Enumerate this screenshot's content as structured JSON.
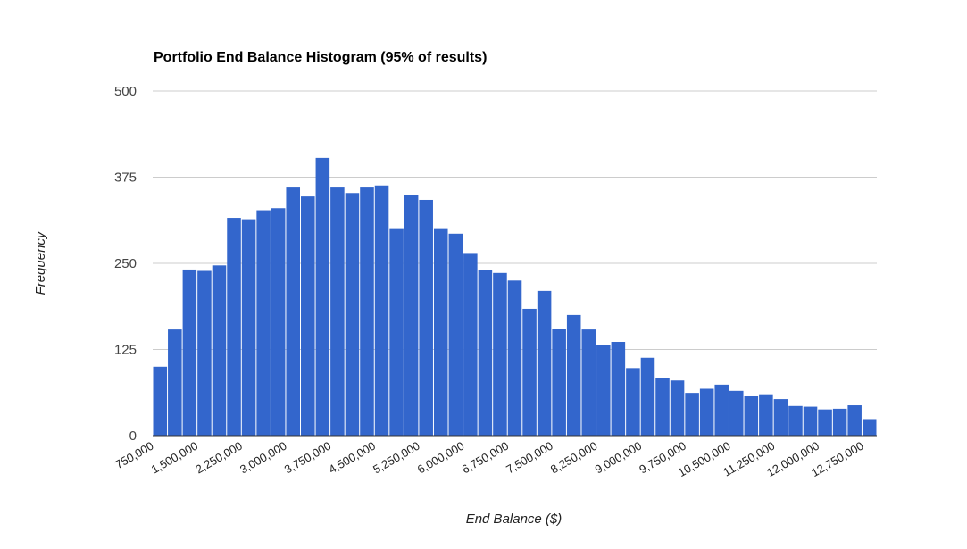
{
  "chart_data": {
    "type": "bar",
    "title": "Portfolio End Balance Histogram (95% of results)",
    "xlabel": "End Balance ($)",
    "ylabel": "Frequency",
    "ylim": [
      0,
      500
    ],
    "yticks": [
      "0",
      "125",
      "250",
      "375",
      "500"
    ],
    "xticks": [
      "750,000",
      "1,500,000",
      "2,250,000",
      "3,000,000",
      "3,750,000",
      "4,500,000",
      "5,250,000",
      "6,000,000",
      "6,750,000",
      "7,500,000",
      "8,250,000",
      "9,000,000",
      "9,750,000",
      "10,500,000",
      "11,250,000",
      "12,000,000",
      "12,750,000"
    ],
    "values": [
      100,
      154,
      241,
      239,
      247,
      316,
      314,
      327,
      330,
      360,
      347,
      403,
      360,
      352,
      360,
      363,
      301,
      349,
      342,
      301,
      293,
      265,
      240,
      236,
      225,
      184,
      210,
      155,
      175,
      154,
      132,
      136,
      98,
      113,
      84,
      80,
      62,
      68,
      74,
      65,
      57,
      60,
      53,
      43,
      42,
      38,
      39,
      44,
      24
    ],
    "color": "#3366cc",
    "grid": true
  }
}
